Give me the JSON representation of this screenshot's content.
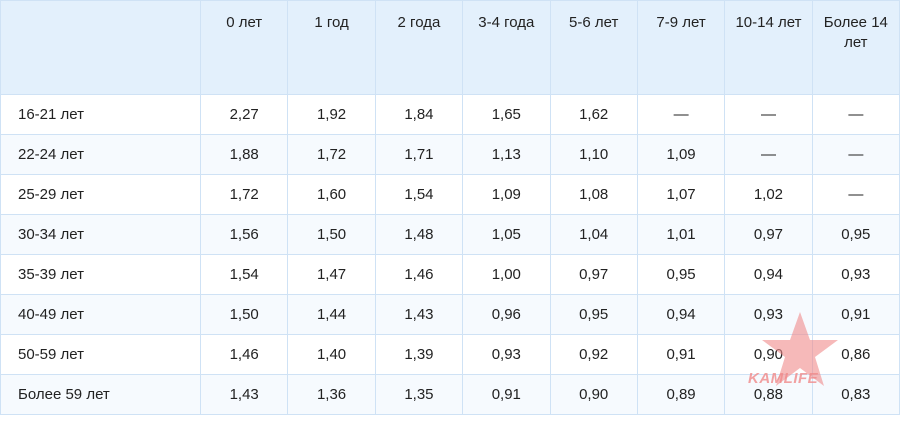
{
  "table": {
    "header": [
      "0 лет",
      "1 год",
      "2 года",
      "3-4 года",
      "5-6 лет",
      "7-9 лет",
      "10-14 лет",
      "Более 14 лет"
    ],
    "rows": [
      [
        "16-21 лет",
        "2,27",
        "1,92",
        "1,84",
        "1,65",
        "1,62",
        "—",
        "—",
        "—"
      ],
      [
        "22-24 лет",
        "1,88",
        "1,72",
        "1,71",
        "1,13",
        "1,10",
        "1,09",
        "—",
        "—"
      ],
      [
        "25-29 лет",
        "1,72",
        "1,60",
        "1,54",
        "1,09",
        "1,08",
        "1,07",
        "1,02",
        "—"
      ],
      [
        "30-34 лет",
        "1,56",
        "1,50",
        "1,48",
        "1,05",
        "1,04",
        "1,01",
        "0,97",
        "0,95"
      ],
      [
        "35-39 лет",
        "1,54",
        "1,47",
        "1,46",
        "1,00",
        "0,97",
        "0,95",
        "0,94",
        "0,93"
      ],
      [
        "40-49 лет",
        "1,50",
        "1,44",
        "1,43",
        "0,96",
        "0,95",
        "0,94",
        "0,93",
        "0,91"
      ],
      [
        "50-59 лет",
        "1,46",
        "1,40",
        "1,39",
        "0,93",
        "0,92",
        "0,91",
        "0,90",
        "0,86"
      ],
      [
        "Более 59 лет",
        "1,43",
        "1,36",
        "1,35",
        "0,91",
        "0,90",
        "0,89",
        "0,88",
        "0,83"
      ]
    ]
  },
  "watermark": "KAMLIFE"
}
